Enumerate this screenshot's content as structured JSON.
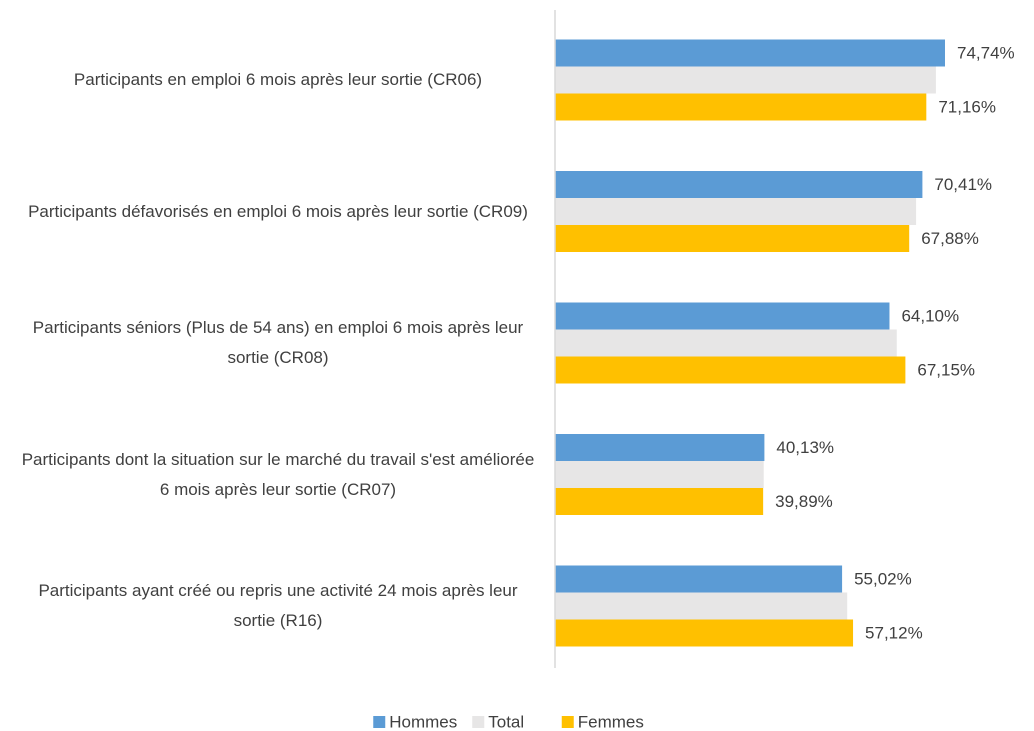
{
  "chart_data": {
    "type": "hbar",
    "categories": [
      "Participants en emploi 6 mois après leur sortie (CR06)",
      "Participants défavorisés en emploi 6 mois après leur sortie (CR09)",
      "Participants séniors (Plus de 54 ans) en emploi 6 mois après leur sortie (CR08)",
      "Participants dont la situation sur le marché du travail s'est améliorée 6 mois après leur sortie (CR07)",
      "Participants ayant créé ou repris une activité 24 mois après leur sortie (R16)"
    ],
    "series": [
      {
        "name": "Hommes",
        "color": "#5b9bd5",
        "values": [
          74.74,
          70.41,
          64.1,
          40.13,
          55.02
        ],
        "value_labels": [
          "74,74%",
          "70,41%",
          "64,10%",
          "40,13%",
          "55,02%"
        ]
      },
      {
        "name": "Total",
        "color": "#e7e6e6",
        "values": [
          73.0,
          69.2,
          65.5,
          40.0,
          56.0
        ]
      },
      {
        "name": "Femmes",
        "color": "#ffc000",
        "values": [
          71.16,
          67.88,
          67.15,
          39.89,
          57.12
        ],
        "value_labels": [
          "71,16%",
          "67,88%",
          "67,15%",
          "39,89%",
          "57,12%"
        ]
      }
    ],
    "xlim": [
      0,
      80
    ],
    "legend": "bottom"
  }
}
